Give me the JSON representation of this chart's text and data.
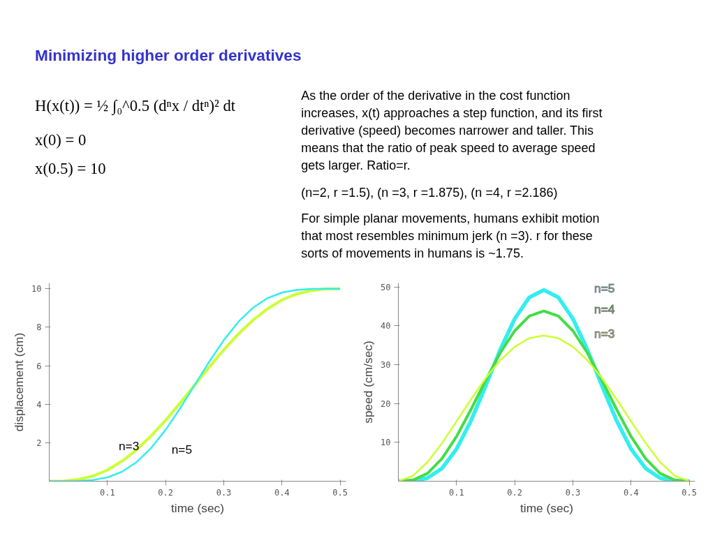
{
  "chart_data": [
    {
      "type": "other",
      "title": "Minimizing higher order derivatives",
      "annotations": [
        "H(x(t)) = ½ ∫₀^0.5 (dⁿx / dtⁿ)² dt",
        "x(0) = 0",
        "x(0.5) = 10",
        "As the order of the derivative in the cost function\nincreases, x(t) approaches a step function, and its first\nderivative (speed) becomes narrower and taller.  This\nmeans that the ratio of peak speed to average speed\ngets larger.  Ratio=r.",
        "(n=2, r =1.5), (n =3, r =1.875), (n =4, r =2.186)",
        "For simple planar movements, humans exhibit motion\nthat most resembles minimum jerk (n =3). r for these\nsorts of movements in humans is ~1.75."
      ]
    },
    {
      "type": "line",
      "xlabel": "time (sec)",
      "ylabel": "displacement (cm)",
      "xlim": [
        0,
        0.51
      ],
      "ylim": [
        0,
        10.3
      ],
      "xticks": [
        0.1,
        0.2,
        0.3,
        0.4,
        0.5
      ],
      "yticks": [
        2,
        4,
        6,
        8,
        10
      ],
      "grid": false,
      "legend": false,
      "x": [
        0,
        0.025,
        0.05,
        0.075,
        0.1,
        0.125,
        0.15,
        0.175,
        0.2,
        0.225,
        0.25,
        0.275,
        0.3,
        0.325,
        0.35,
        0.375,
        0.4,
        0.425,
        0.45,
        0.475,
        0.5
      ],
      "series": [
        {
          "name": "n=3",
          "color": "#ccff33",
          "values": [
            0,
            0.01,
            0.09,
            0.27,
            0.58,
            1.04,
            1.63,
            2.35,
            3.17,
            4.07,
            5,
            5.93,
            6.83,
            7.65,
            8.37,
            8.96,
            9.42,
            9.73,
            9.91,
            9.99,
            10
          ]
        },
        {
          "name": "n=5",
          "color": "#33eeee",
          "values": [
            0,
            0,
            0.01,
            0.06,
            0.2,
            0.49,
            0.99,
            1.72,
            2.67,
            3.79,
            5,
            6.21,
            7.33,
            8.28,
            9.01,
            9.51,
            9.8,
            9.94,
            9.99,
            10,
            10
          ]
        }
      ]
    },
    {
      "type": "line",
      "xlabel": "time (sec)",
      "ylabel": "speed (cm/sec)",
      "xlim": [
        0,
        0.51
      ],
      "ylim": [
        0,
        51
      ],
      "xticks": [
        0.1,
        0.2,
        0.3,
        0.4,
        0.5
      ],
      "yticks": [
        10,
        20,
        30,
        40,
        50
      ],
      "grid": false,
      "legend": false,
      "x": [
        0,
        0.025,
        0.05,
        0.075,
        0.1,
        0.125,
        0.15,
        0.175,
        0.2,
        0.225,
        0.25,
        0.275,
        0.3,
        0.325,
        0.35,
        0.375,
        0.4,
        0.425,
        0.45,
        0.475,
        0.5
      ],
      "series": [
        {
          "name": "n=5",
          "color": "#33eeee",
          "values": [
            0,
            0.1,
            0.8,
            3.3,
            8.3,
            15.6,
            24.5,
            33.8,
            41.8,
            47.3,
            49.2,
            47.3,
            41.8,
            33.8,
            24.5,
            15.6,
            8.3,
            3.3,
            0.8,
            0.1,
            0
          ]
        },
        {
          "name": "n=4",
          "color": "#44dd44",
          "values": [
            0,
            0.3,
            2,
            5.8,
            11.5,
            18.5,
            25.9,
            33,
            38.7,
            42.5,
            43.8,
            42.5,
            38.7,
            33,
            25.9,
            18.5,
            11.5,
            5.8,
            2,
            0.3,
            0
          ]
        },
        {
          "name": "n=3",
          "color": "#ccff33",
          "values": [
            0,
            1.4,
            4.9,
            9.8,
            15.4,
            21.1,
            26.5,
            31.1,
            34.6,
            36.8,
            37.5,
            36.8,
            34.6,
            31.1,
            26.5,
            21.1,
            15.4,
            9.8,
            4.9,
            1.4,
            0
          ]
        }
      ]
    }
  ]
}
